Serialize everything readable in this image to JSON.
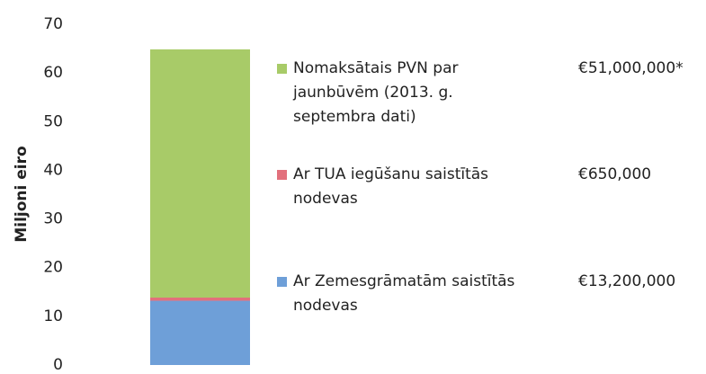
{
  "chart_data": {
    "type": "stacked_bar",
    "y_label": "Miljoni eiro",
    "categories": [
      null
    ],
    "series": [
      {
        "name": "Ar Zemesgrāmatām saistītās nodevas",
        "color": "#6e9fd8",
        "values": [
          13.2
        ],
        "value_labels": [
          "€13,200,000"
        ]
      },
      {
        "name": "Ar TUA iegūšanu saistītās nodevas",
        "color": "#e2707c",
        "values": [
          0.65
        ],
        "value_labels": [
          "€650,000"
        ]
      },
      {
        "name": "Nomaksātais PVN par jaunbūvēm (2013. g. septembra dati)",
        "color": "#a8cb68",
        "values": [
          51
        ],
        "value_labels": [
          "€51,000,000*"
        ]
      }
    ],
    "ylim": [
      0,
      70
    ],
    "yticks": [
      0,
      10,
      20,
      30,
      40,
      50,
      60,
      70
    ],
    "grid": false
  }
}
